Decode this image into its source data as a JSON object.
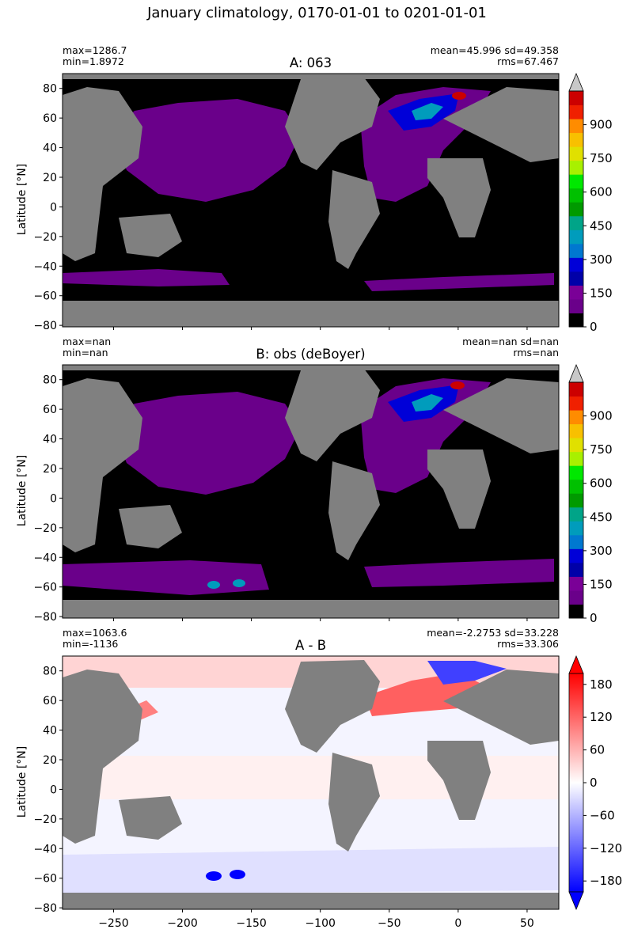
{
  "figure_title": "January climatology, 0170-01-01 to 0201-01-01",
  "colors": {
    "land": "#808080",
    "ocean_zero": "#000000",
    "sequential": [
      "#000000",
      "#6a008a",
      "#7a0097",
      "#0000a8",
      "#0000d8",
      "#0078d0",
      "#009cbc",
      "#00a488",
      "#009a00",
      "#00c000",
      "#00e800",
      "#a8f000",
      "#e0e000",
      "#f8c000",
      "#ff8c00",
      "#f02000",
      "#cc0000",
      "#c8c8c8"
    ],
    "diverging_neg": "#0000ff",
    "diverging_pos": "#ff0000"
  },
  "chart_data": [
    {
      "type": "heatmap",
      "panel": "A",
      "title": "A: 063",
      "stats_left": [
        "max=1286.7",
        "min=1.8972"
      ],
      "stats_right": [
        "mean=45.996 sd=49.358",
        "rms=67.467"
      ],
      "ylabel": "Latitude [°N]",
      "xlabel": "",
      "xlim": [
        -287,
        73
      ],
      "ylim": [
        -81,
        90
      ],
      "yticks": [
        "80",
        "60",
        "40",
        "20",
        "0",
        "−20",
        "−40",
        "−60",
        "−80"
      ],
      "colorbar": {
        "range": [
          0,
          1050
        ],
        "ticks": [
          "0",
          "150",
          "300",
          "450",
          "600",
          "750",
          "900"
        ],
        "extend": "max"
      }
    },
    {
      "type": "heatmap",
      "panel": "B",
      "title": "B: obs (deBoyer)",
      "stats_left": [
        "max=nan",
        "min=nan"
      ],
      "stats_right": [
        "mean=nan sd=nan",
        "rms=nan"
      ],
      "ylabel": "Latitude [°N]",
      "xlabel": "",
      "xlim": [
        -287,
        73
      ],
      "ylim": [
        -81,
        90
      ],
      "yticks": [
        "80",
        "60",
        "40",
        "20",
        "0",
        "−20",
        "−40",
        "−60",
        "−80"
      ],
      "colorbar": {
        "range": [
          0,
          1050
        ],
        "ticks": [
          "0",
          "150",
          "300",
          "450",
          "600",
          "750",
          "900"
        ],
        "extend": "max"
      }
    },
    {
      "type": "heatmap",
      "panel": "A - B",
      "title": "A - B",
      "stats_left": [
        "max=1063.6",
        "min=-1136"
      ],
      "stats_right": [
        "mean=-2.2753 sd=33.228",
        "rms=33.306"
      ],
      "ylabel": "Latitude [°N]",
      "xlabel": "",
      "xlim": [
        -287,
        73
      ],
      "ylim": [
        -81,
        90
      ],
      "xticks": [
        "−250",
        "−200",
        "−150",
        "−100",
        "−50",
        "0",
        "50"
      ],
      "xtick_values": [
        -250,
        -200,
        -150,
        -100,
        -50,
        0,
        50
      ],
      "yticks": [
        "80",
        "60",
        "40",
        "20",
        "0",
        "−20",
        "−40",
        "−60",
        "−80"
      ],
      "colorbar": {
        "range": [
          -200,
          200
        ],
        "ticks": [
          "−180",
          "−120",
          "−60",
          "0",
          "60",
          "120",
          "180"
        ],
        "extend": "both"
      }
    }
  ]
}
